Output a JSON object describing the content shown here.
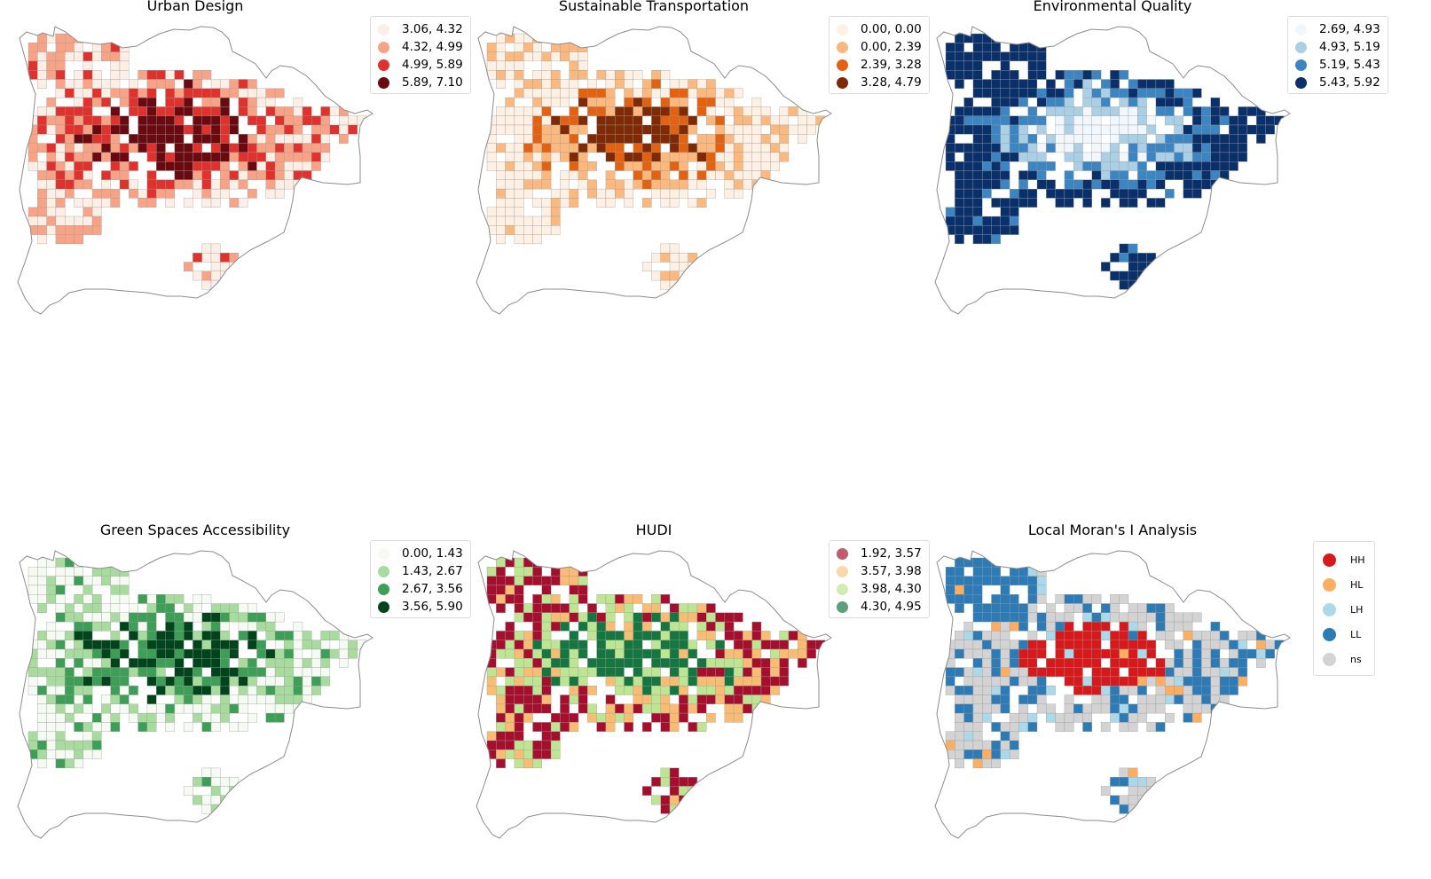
{
  "maps": [
    {
      "id": "urban-design",
      "title": "Urban Design",
      "palette": [
        "#fdeee6",
        "#f9a386",
        "#e0312c",
        "#6a0a10"
      ],
      "legend": [
        "3.06, 4.32",
        "4.32, 4.99",
        "4.99, 5.89",
        "5.89, 7.10"
      ]
    },
    {
      "id": "sustainable-transportation",
      "title": "Sustainable Transportation",
      "palette": [
        "#fef0e3",
        "#fdb97d",
        "#e4620f",
        "#7f2a04"
      ],
      "legend": [
        "0.00, 0.00",
        "0.00, 2.39",
        "2.39, 3.28",
        "3.28, 4.79"
      ]
    },
    {
      "id": "environmental-quality",
      "title": "Environmental Quality",
      "palette": [
        "#f2f7fd",
        "#abd0e6",
        "#3b85c2",
        "#0a306b"
      ],
      "legend": [
        "2.69, 4.93",
        "4.93, 5.19",
        "5.19, 5.43",
        "5.43, 5.92"
      ]
    },
    {
      "id": "green-spaces-accessibility",
      "title": "Green Spaces Accessibility",
      "palette": [
        "#f5fbf2",
        "#a8dc9f",
        "#3c9f55",
        "#00441b"
      ],
      "legend": [
        "0.00, 1.43",
        "1.43, 2.67",
        "2.67, 3.56",
        "3.56, 5.90"
      ]
    },
    {
      "id": "hudi",
      "title": "HUDI",
      "palette": [
        "#a50f2d",
        "#f8bd73",
        "#bde592",
        "#16763f"
      ],
      "legend_palette": [
        "#c15b6e",
        "#fbd8ab",
        "#d3ecb3",
        "#5c9f79"
      ],
      "legend": [
        "1.92, 3.57",
        "3.57, 3.98",
        "3.98, 4.30",
        "4.30, 4.95"
      ]
    },
    {
      "id": "local-morans-i",
      "title": "Local Moran's I Analysis",
      "palette": [
        "#d7191c",
        "#fdae61",
        "#abd9e9",
        "#2c7bb6",
        "#d3d3d3"
      ],
      "legend": [
        "HH",
        "HL",
        "LH",
        "LL",
        "ns"
      ]
    }
  ]
}
